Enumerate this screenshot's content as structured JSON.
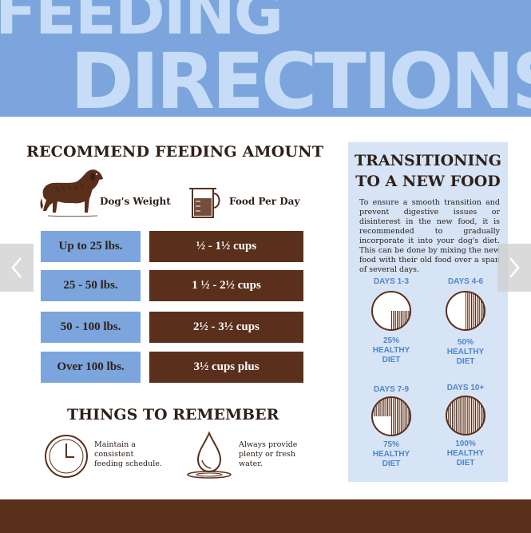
{
  "hero": {
    "line1": "FEEDING",
    "line2": "DIRECTIONS"
  },
  "feeding": {
    "title": "RECOMMEND FEEDING AMOUNT",
    "col_weight": "Dog's Weight",
    "col_food": "Food Per Day",
    "rows": [
      {
        "weight": "Up to 25 lbs.",
        "food": "½ - 1½ cups"
      },
      {
        "weight": "25 - 50 lbs.",
        "food": "1 ½ - 2½ cups"
      },
      {
        "weight": "50 - 100 lbs.",
        "food": "2½ - 3½ cups"
      },
      {
        "weight": "Over 100 lbs.",
        "food": "3½ cups plus"
      }
    ]
  },
  "remember": {
    "title": "THINGS TO REMEMBER",
    "schedule": "Maintain a consistent feeding schedule.",
    "water": "Always provide plenty or fresh water."
  },
  "transition": {
    "title_line1": "TRANSITIONING",
    "title_line2": "TO A NEW FOOD",
    "text": "To ensure a smooth transition and prevent digestive issues or disinterest in the new food, it is recommended to gradually incorporate it into your dog's diet. This can be done by mixing the new food with their old food over a span of several days.",
    "stages": [
      {
        "days": "DAYS 1-3",
        "pct": "25%",
        "healthy": "HEALTHY",
        "diet": "DIET",
        "fraction": 0.25
      },
      {
        "days": "DAYS 4-6",
        "pct": "50%",
        "healthy": "HEALTHY",
        "diet": "DIET",
        "fraction": 0.5
      },
      {
        "days": "DAYS 7-9",
        "pct": "75%",
        "healthy": "HEALTHY",
        "diet": "DIET",
        "fraction": 0.75
      },
      {
        "days": "DAYS 10+",
        "pct": "100%",
        "healthy": "HEALTHY",
        "diet": "DIET",
        "fraction": 1.0
      }
    ]
  },
  "colors": {
    "brown": "#5a2f1c",
    "blue": "#7ba5dc",
    "light_blue": "#c6dcf7",
    "panel": "#d6e4f6",
    "label_blue": "#4f86c9"
  },
  "nav": {
    "prev_icon": "chevron-left-icon",
    "next_icon": "chevron-right-icon"
  }
}
